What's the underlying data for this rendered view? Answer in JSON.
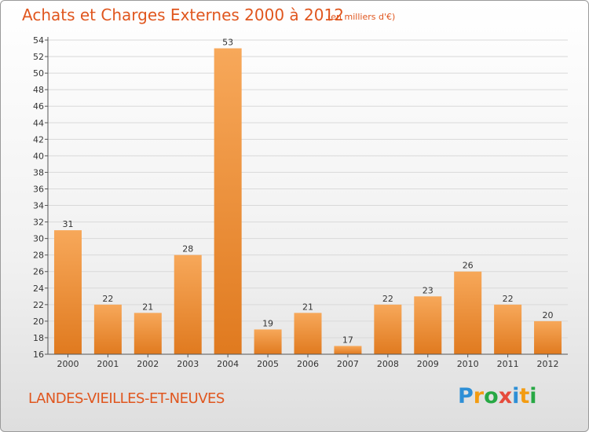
{
  "header": {
    "title": "Achats et Charges Externes 2000 à 2012",
    "unit": "(en milliers d'€)"
  },
  "footer": {
    "place": "LANDES-VIEILLES-ET-NEUVES",
    "logo_letters": [
      {
        "ch": "P",
        "color": "#2e8fd6"
      },
      {
        "ch": "r",
        "color": "#f39c12"
      },
      {
        "ch": "o",
        "color": "#27a844"
      },
      {
        "ch": "x",
        "color": "#e64b3c"
      },
      {
        "ch": "i",
        "color": "#2e8fd6"
      },
      {
        "ch": "t",
        "color": "#f39c12"
      },
      {
        "ch": "i",
        "color": "#27a844"
      }
    ]
  },
  "colors": {
    "bar_light": "#f7a85a",
    "bar_dark": "#e07a1f",
    "grid": "#d9d9d9",
    "axis": "#555555",
    "accent": "#e0561e"
  },
  "chart_data": {
    "type": "bar",
    "categories": [
      "2000",
      "2001",
      "2002",
      "2003",
      "2004",
      "2005",
      "2006",
      "2007",
      "2008",
      "2009",
      "2010",
      "2011",
      "2012"
    ],
    "values": [
      31,
      22,
      21,
      28,
      53,
      19,
      21,
      17,
      22,
      23,
      26,
      22,
      20
    ],
    "ylim": [
      16,
      54
    ],
    "yticks": [
      16,
      18,
      20,
      22,
      24,
      26,
      28,
      30,
      32,
      34,
      36,
      38,
      40,
      42,
      44,
      46,
      48,
      50,
      52,
      54
    ],
    "grid": "horizontal",
    "legend": "none"
  }
}
